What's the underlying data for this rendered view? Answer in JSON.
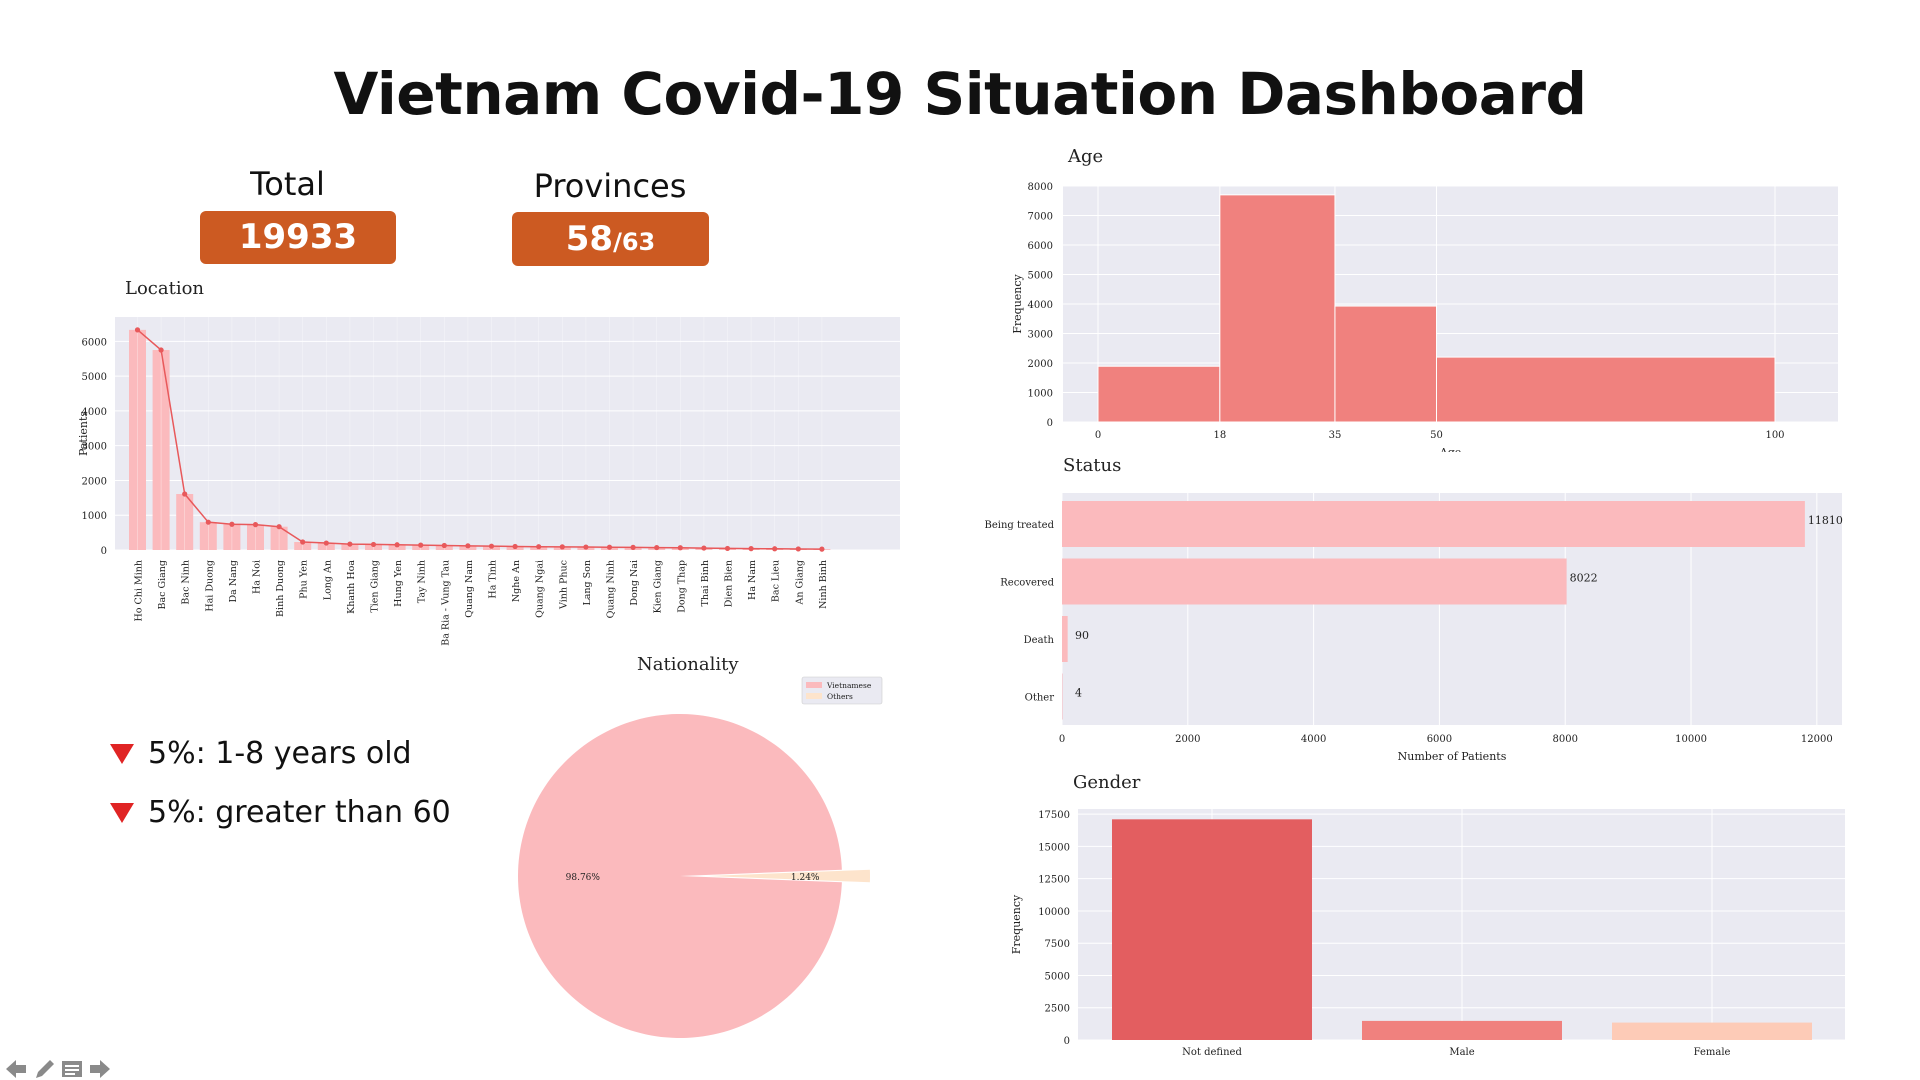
{
  "title": "Vietnam Covid-19 Situation Dashboard",
  "kpis": {
    "total_label": "Total",
    "total_value": "19933",
    "provinces_label": "Provinces",
    "provinces_value": "58",
    "provinces_suffix": "/63"
  },
  "notes": [
    "5%: 1-8 years old",
    "5%: greater than 60"
  ],
  "colors": {
    "accent": "#cc5a22",
    "bar_pink": "#fbbabd",
    "line_red": "#e8595b",
    "hist": "#f0817e",
    "gender_1": "#e35e60",
    "gender_2": "#f0817e",
    "gender_3": "#fdcbb7",
    "pie_others": "#fde4cc",
    "panel_bg": "#eaeaf2"
  },
  "chart_data": [
    {
      "id": "location",
      "type": "bar",
      "title": "Location",
      "ylabel": "Patients",
      "ylim": [
        0,
        6700
      ],
      "yticks": [
        0,
        1000,
        2000,
        3000,
        4000,
        5000,
        6000
      ],
      "categories": [
        "Ho Chi Minh",
        "Bac Giang",
        "Bac Ninh",
        "Hai Duong",
        "Da Nang",
        "Ha Noi",
        "Binh Duong",
        "Phu Yen",
        "Long An",
        "Khanh Hoa",
        "Tien Giang",
        "Hung Yen",
        "Tay Ninh",
        "Ba Ria - Vung Tau",
        "Quang Nam",
        "Ha Tinh",
        "Nghe An",
        "Quang Ngai",
        "Vinh Phuc",
        "Lang Son",
        "Quang Ninh",
        "Dong Nai",
        "Kien Giang",
        "Dong Thap",
        "Thai Binh",
        "Dien Bien",
        "Ha Nam",
        "Bac Lieu",
        "An Giang",
        "Ninh Binh"
      ],
      "values": [
        6330,
        5750,
        1610,
        800,
        740,
        730,
        670,
        230,
        200,
        170,
        160,
        150,
        140,
        130,
        120,
        110,
        100,
        95,
        90,
        85,
        80,
        75,
        70,
        65,
        55,
        45,
        40,
        35,
        30,
        25
      ],
      "grid": true
    },
    {
      "id": "age",
      "type": "bar",
      "subtype": "histogram",
      "title": "Age",
      "ylabel": "Frequency",
      "xlabel": "Age",
      "bin_edges": [
        0,
        18,
        35,
        50,
        100
      ],
      "values": [
        1890,
        7700,
        3930,
        2200
      ],
      "ylim": [
        0,
        8000
      ],
      "yticks": [
        0,
        1000,
        2000,
        3000,
        4000,
        5000,
        6000,
        7000,
        8000
      ],
      "xticks": [
        0,
        18,
        35,
        50,
        100
      ],
      "grid": true
    },
    {
      "id": "status",
      "type": "bar",
      "orientation": "horizontal",
      "title": "Status",
      "xlabel": "Number of Patients",
      "categories": [
        "Being treated",
        "Recovered",
        "Death",
        "Other"
      ],
      "values": [
        11810,
        8022,
        90,
        4
      ],
      "xlim": [
        0,
        12400
      ],
      "xticks": [
        0,
        2000,
        4000,
        6000,
        8000,
        10000,
        12000
      ],
      "grid": true
    },
    {
      "id": "nationality",
      "type": "pie",
      "title": "Nationality",
      "labels": [
        "Vietnamese",
        "Others"
      ],
      "values": [
        98.76,
        1.24
      ],
      "value_labels": [
        "98.76%",
        "1.24%"
      ],
      "legend": "top-right"
    },
    {
      "id": "gender",
      "type": "bar",
      "title": "Gender",
      "ylabel": "Frequency",
      "categories": [
        "Not defined",
        "Male",
        "Female"
      ],
      "values": [
        17100,
        1480,
        1350
      ],
      "ylim": [
        0,
        17900
      ],
      "yticks": [
        0,
        2500,
        5000,
        7500,
        10000,
        12500,
        15000,
        17500
      ],
      "grid": true
    }
  ]
}
